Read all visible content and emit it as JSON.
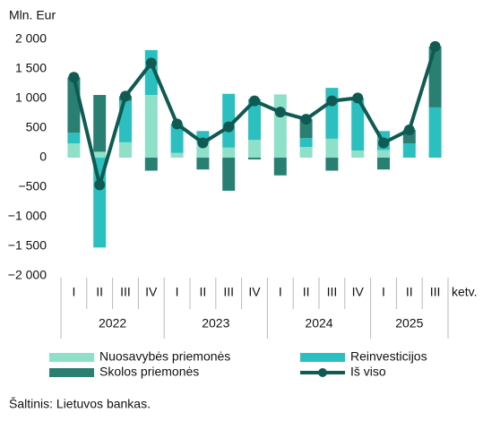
{
  "chart_data": {
    "type": "bar",
    "stacked": true,
    "y_label": "Mln. Eur",
    "x_label": "ketv.",
    "categories": [
      "I",
      "II",
      "III",
      "IV",
      "I",
      "II",
      "III",
      "IV",
      "I",
      "II",
      "III",
      "IV",
      "I",
      "II",
      "III"
    ],
    "groups": [
      {
        "label": "2022",
        "span": 4
      },
      {
        "label": "2023",
        "span": 4
      },
      {
        "label": "2024",
        "span": 4
      },
      {
        "label": "2025",
        "span": 3
      }
    ],
    "series": [
      {
        "name": "Nuosavybės priemonės",
        "color": "#8fe0c8",
        "values": [
          240,
          100,
          260,
          1060,
          80,
          240,
          170,
          300,
          1070,
          180,
          320,
          120,
          130,
          0,
          0
        ]
      },
      {
        "name": "Reinvesticijos",
        "color": "#2bbfbf",
        "values": [
          180,
          -1520,
          700,
          760,
          490,
          210,
          910,
          690,
          0,
          150,
          860,
          890,
          320,
          240,
          850
        ]
      },
      {
        "name": "Skolos priemonės",
        "color": "#2a7f73",
        "values": [
          940,
          960,
          80,
          -220,
          0,
          -200,
          -560,
          -30,
          -300,
          320,
          -220,
          0,
          -200,
          230,
          1030
        ]
      },
      {
        "name": "Iš viso",
        "type": "line",
        "color": "#0f5a52",
        "values": [
          1360,
          -460,
          1040,
          1600,
          570,
          250,
          520,
          960,
          770,
          650,
          960,
          1010,
          250,
          470,
          1880
        ]
      }
    ],
    "ylim": [
      -2000,
      2000
    ],
    "yticks": [
      {
        "value": -2000,
        "label": "−2 000"
      },
      {
        "value": -1500,
        "label": "−1 500"
      },
      {
        "value": -1000,
        "label": "−1 000"
      },
      {
        "value": -500,
        "label": "−500"
      },
      0,
      500,
      {
        "value": 1000,
        "label": "1 000"
      },
      {
        "value": 1500,
        "label": "1 500"
      },
      {
        "value": 2000,
        "label": "2 000"
      }
    ],
    "grid": false,
    "source": "Šaltinis: Lietuvos bankas."
  }
}
